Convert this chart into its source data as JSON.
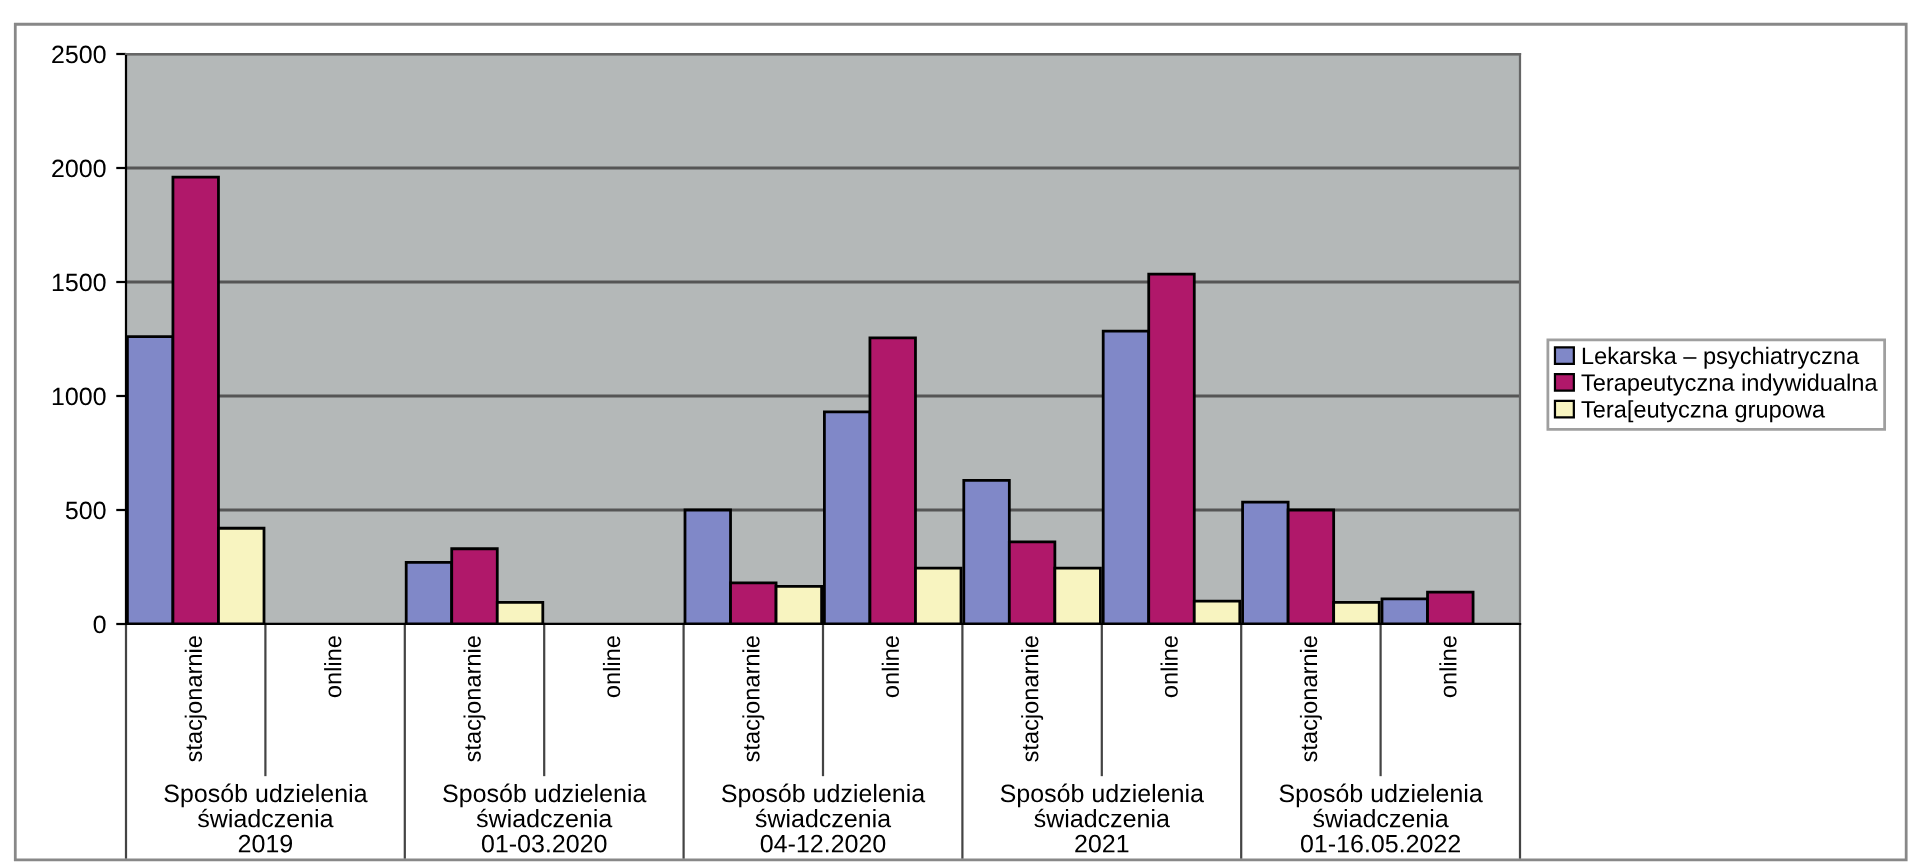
{
  "chart_data": {
    "type": "bar",
    "categories": [
      "stacjonarnie",
      "online",
      "stacjonarnie",
      "online",
      "stacjonarnie",
      "online",
      "stacjonarnie",
      "online",
      "stacjonarnie",
      "online"
    ],
    "series": [
      {
        "name": "Lekarska – psychiatryczna",
        "color": "#8088c8",
        "values": [
          1260,
          null,
          270,
          null,
          500,
          930,
          630,
          1285,
          535,
          110
        ]
      },
      {
        "name": "Terapeutyczna indywidualna",
        "color": "#b0186a",
        "values": [
          1960,
          null,
          330,
          null,
          180,
          1255,
          360,
          1535,
          500,
          140
        ]
      },
      {
        "name": "Tera[eutyczna grupowa",
        "color": "#f8f4c0",
        "values": [
          420,
          null,
          95,
          null,
          165,
          245,
          245,
          100,
          95,
          null
        ]
      }
    ],
    "annotations": [
      "Sposób udzielenia\nświadczenia\n2019",
      "Sposób udzielenia\nświadczenia\n01-03.2020",
      "Sposób udzielenia\nświadczenia\n04-12.2020",
      "Sposób udzielenia\nświadczenia\n2021",
      "Sposób udzielenia\nświadczenia\n01-16.05.2022"
    ],
    "ylim": [
      0,
      2500
    ],
    "yticks": [
      0,
      500,
      1000,
      1500,
      2000,
      2500
    ],
    "grid": "y",
    "legend": "right"
  }
}
